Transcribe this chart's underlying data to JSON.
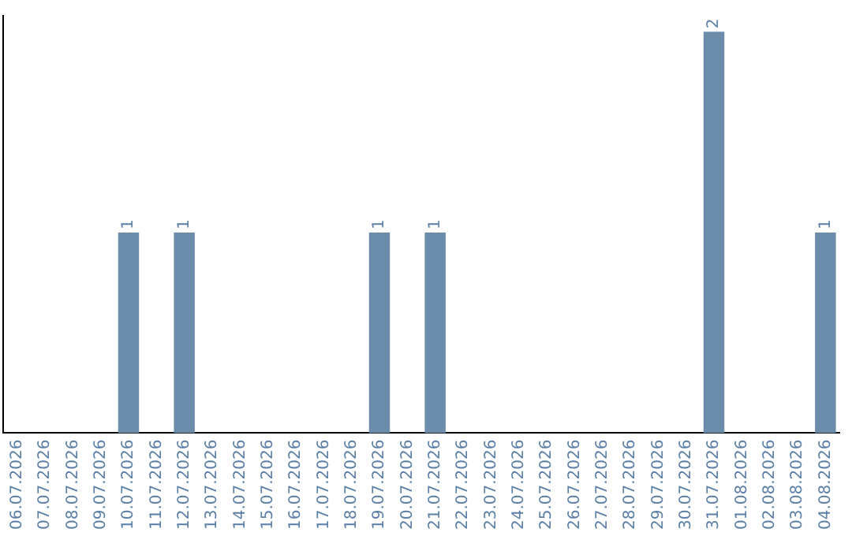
{
  "chart_data": {
    "type": "bar",
    "categories": [
      "06.07.2026",
      "07.07.2026",
      "08.07.2026",
      "09.07.2026",
      "10.07.2026",
      "11.07.2026",
      "12.07.2026",
      "13.07.2026",
      "14.07.2026",
      "15.07.2026",
      "16.07.2026",
      "17.07.2026",
      "18.07.2026",
      "19.07.2026",
      "20.07.2026",
      "21.07.2026",
      "22.07.2026",
      "23.07.2026",
      "24.07.2026",
      "25.07.2026",
      "26.07.2026",
      "27.07.2026",
      "28.07.2026",
      "29.07.2026",
      "30.07.2026",
      "31.07.2026",
      "01.08.2026",
      "02.08.2026",
      "03.08.2026",
      "04.08.2026"
    ],
    "values": [
      0,
      0,
      0,
      0,
      1,
      0,
      1,
      0,
      0,
      0,
      0,
      0,
      0,
      1,
      0,
      1,
      0,
      0,
      0,
      0,
      0,
      0,
      0,
      0,
      0,
      2,
      0,
      0,
      0,
      1
    ],
    "value_labels": [
      null,
      null,
      null,
      null,
      "1",
      null,
      "1",
      null,
      null,
      null,
      null,
      null,
      null,
      "1",
      null,
      "1",
      null,
      null,
      null,
      null,
      null,
      null,
      null,
      null,
      null,
      "2",
      null,
      null,
      null,
      "1"
    ],
    "color": "#6b8cab",
    "ylim": [
      0,
      2.08
    ],
    "tick_labels": "x",
    "grid": false,
    "legend": false
  }
}
